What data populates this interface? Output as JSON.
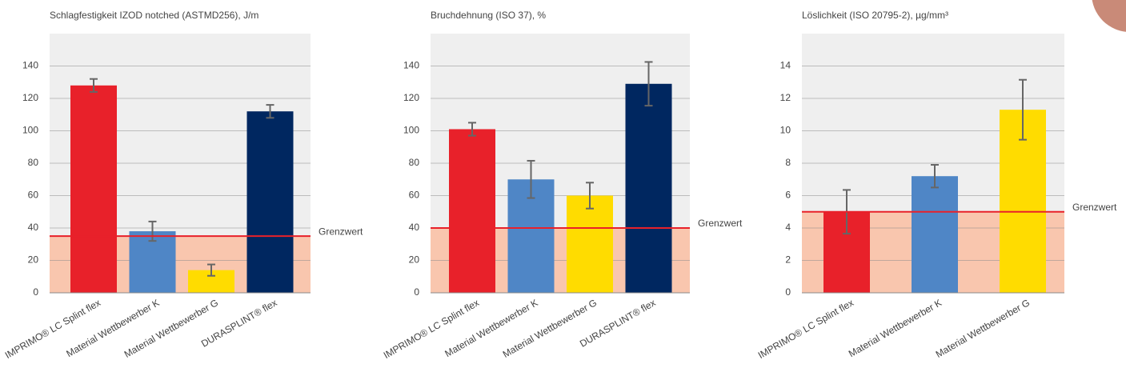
{
  "chart_data": [
    {
      "type": "bar",
      "title": "Schlagfestigkeit IZOD notched (ASTMD256), J/m",
      "categories": [
        "IMPRIMO® LC Splint flex",
        "Material Wettbewerber K",
        "Material Wettbewerber G",
        "DURASPLINT® flex"
      ],
      "values": [
        128,
        38,
        14,
        112
      ],
      "errors": [
        4,
        6,
        3.5,
        4
      ],
      "colors": [
        "#e8212a",
        "#4f86c6",
        "#ffdc00",
        "#002760"
      ],
      "ylim": [
        0,
        160
      ],
      "yticks": [
        0,
        20,
        40,
        60,
        80,
        100,
        120,
        140
      ],
      "grid": true,
      "threshold": 35,
      "threshold_label": "Grenzwert"
    },
    {
      "type": "bar",
      "title": "Bruchdehnung (ISO 37), %",
      "categories": [
        "IMPRIMO® LC Splint flex",
        "Material Wettbewerber K",
        "Material Wettbewerber G",
        "DURASPLINT® flex"
      ],
      "values": [
        101,
        70,
        60,
        129
      ],
      "errors": [
        4,
        11.5,
        8,
        13.5
      ],
      "colors": [
        "#e8212a",
        "#4f86c6",
        "#ffdc00",
        "#002760"
      ],
      "ylim": [
        0,
        160
      ],
      "yticks": [
        0,
        20,
        40,
        60,
        80,
        100,
        120,
        140
      ],
      "grid": true,
      "threshold": 40,
      "threshold_label": "Grenzwert"
    },
    {
      "type": "bar",
      "title": "Löslichkeit (ISO 20795-2), µg/mm³",
      "categories": [
        "IMPRIMO® LC Splint flex",
        "Material Wettbewerber K",
        "Material Wettbewerber G"
      ],
      "values": [
        5,
        7.2,
        11.3
      ],
      "errors": [
        1.35,
        0.7,
        1.85
      ],
      "colors": [
        "#e8212a",
        "#4f86c6",
        "#ffdc00"
      ],
      "ylim": [
        0,
        16
      ],
      "yticks": [
        0,
        2,
        4,
        6,
        8,
        10,
        12,
        14
      ],
      "grid": true,
      "threshold": 5,
      "threshold_label": "Grenzwert"
    }
  ]
}
